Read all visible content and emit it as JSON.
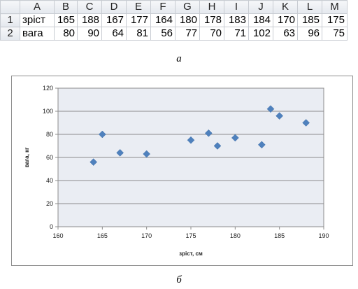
{
  "sheet": {
    "columns": [
      "A",
      "B",
      "C",
      "D",
      "E",
      "F",
      "G",
      "H",
      "I",
      "J",
      "K",
      "L",
      "M"
    ],
    "rows": [
      {
        "num": "1",
        "label": "зріст",
        "values": [
          "165",
          "188",
          "167",
          "177",
          "164",
          "180",
          "178",
          "183",
          "184",
          "170",
          "185",
          "175"
        ]
      },
      {
        "num": "2",
        "label": "вага",
        "values": [
          "80",
          "90",
          "64",
          "81",
          "56",
          "77",
          "70",
          "71",
          "102",
          "63",
          "96",
          "75"
        ]
      }
    ]
  },
  "captions": {
    "a": "а",
    "b": "б"
  },
  "chart_data": {
    "type": "scatter",
    "title": "",
    "xlabel": "зріст, см",
    "ylabel": "вага, кг",
    "xlim": [
      160,
      190
    ],
    "ylim": [
      0,
      120
    ],
    "xticks": [
      160,
      165,
      170,
      175,
      180,
      185,
      190
    ],
    "yticks": [
      0,
      20,
      40,
      60,
      80,
      100,
      120
    ],
    "grid": "horizontal",
    "plot_background": "#eaedf3",
    "marker_color": "#4f81bd",
    "marker": "diamond",
    "points": [
      {
        "x": 165,
        "y": 80
      },
      {
        "x": 188,
        "y": 90
      },
      {
        "x": 167,
        "y": 64
      },
      {
        "x": 177,
        "y": 81
      },
      {
        "x": 164,
        "y": 56
      },
      {
        "x": 180,
        "y": 77
      },
      {
        "x": 178,
        "y": 70
      },
      {
        "x": 183,
        "y": 71
      },
      {
        "x": 184,
        "y": 102
      },
      {
        "x": 170,
        "y": 63
      },
      {
        "x": 185,
        "y": 96
      },
      {
        "x": 175,
        "y": 75
      }
    ]
  }
}
